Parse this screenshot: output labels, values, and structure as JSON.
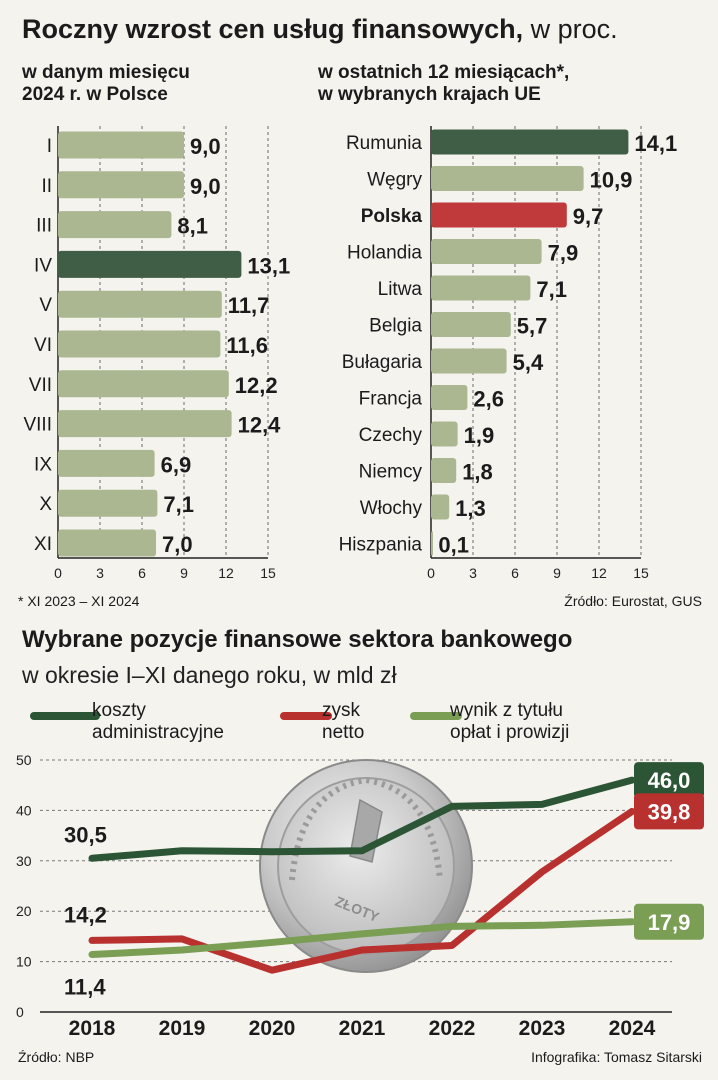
{
  "header": {
    "title": "Roczny wzrost cen usług finansowych,",
    "title_unit": "w proc.",
    "left_subtitle_line1": "w danym miesięcu",
    "left_subtitle_line2": "2024 r. w Polsce",
    "right_subtitle_line1": "w ostatnich 12 miesiącach*,",
    "right_subtitle_line2": "w wybranych krajach UE",
    "footnote": "* XI 2023 – XI 2024",
    "source": "Źródło: Eurostat, GUS"
  },
  "bottom": {
    "title": "Wybrane pozycje finansowe sektora bankowego",
    "subtitle": "w okresie I–XI danego roku, w mld zł",
    "source": "Źródło: NBP",
    "credit": "Infografika: Tomasz Sitarski",
    "coin_text": "ZŁOTY"
  },
  "legend": [
    {
      "line1": "koszty",
      "line2": "administracyjne",
      "color": "#2b5535"
    },
    {
      "line1": "zysk",
      "line2": "netto",
      "color": "#b8312f"
    },
    {
      "line1": "wynik z tytułu",
      "line2": "opłat i prowizji",
      "color": "#7a9e54"
    }
  ],
  "chart_data": [
    {
      "type": "bar",
      "orientation": "horizontal",
      "title": "w danym miesięcu 2024 r. w Polsce",
      "categories": [
        "I",
        "II",
        "III",
        "IV",
        "V",
        "VI",
        "VII",
        "VIII",
        "IX",
        "X",
        "XI"
      ],
      "values": [
        9.0,
        9.0,
        8.1,
        13.1,
        11.7,
        11.6,
        12.2,
        12.4,
        6.9,
        7.1,
        7.0
      ],
      "value_labels": [
        "9,0",
        "9,0",
        "8,1",
        "13,1",
        "11,7",
        "11,6",
        "12,2",
        "12,4",
        "6,9",
        "7,1",
        "7,0"
      ],
      "highlight": "IV",
      "bar_color": "#abb791",
      "highlight_color": "#3f5e45",
      "xlim": [
        0,
        15
      ],
      "xticks": [
        0,
        3,
        6,
        9,
        12,
        15
      ],
      "grid": true
    },
    {
      "type": "bar",
      "orientation": "horizontal",
      "title": "w ostatnich 12 miesiącach*, w wybranych krajach UE",
      "categories": [
        "Rumunia",
        "Węgry",
        "Polska",
        "Holandia",
        "Litwa",
        "Belgia",
        "Bułagaria",
        "Francja",
        "Czechy",
        "Niemcy",
        "Włochy",
        "Hiszpania"
      ],
      "values": [
        14.1,
        10.9,
        9.7,
        7.9,
        7.1,
        5.7,
        5.4,
        2.6,
        1.9,
        1.8,
        1.3,
        0.1
      ],
      "value_labels": [
        "14,1",
        "10,9",
        "9,7",
        "7,9",
        "7,1",
        "5,7",
        "5,4",
        "2,6",
        "1,9",
        "1,8",
        "1,3",
        "0,1"
      ],
      "highlight_dark": "Rumunia",
      "highlight_red": "Polska",
      "bar_color": "#abb791",
      "highlight_dark_color": "#3f5e45",
      "highlight_red_color": "#c0393b",
      "xlim": [
        0,
        15
      ],
      "xticks": [
        0,
        3,
        6,
        9,
        12,
        15
      ],
      "grid": true
    },
    {
      "type": "line",
      "x": [
        "2018",
        "2019",
        "2020",
        "2021",
        "2022",
        "2023",
        "2024"
      ],
      "ylim": [
        0,
        50
      ],
      "yticks": [
        0,
        10,
        20,
        30,
        40,
        50
      ],
      "grid": true,
      "series": [
        {
          "name": "koszty administracyjne",
          "color": "#2b5535",
          "values": [
            30.5,
            32.0,
            31.8,
            32.0,
            40.8,
            41.2,
            46.0
          ],
          "start_label": "30,5",
          "end_label": "46,0"
        },
        {
          "name": "zysk netto",
          "color": "#b8312f",
          "values": [
            14.2,
            14.5,
            8.3,
            12.3,
            13.2,
            27.8,
            39.8
          ],
          "start_label": "14,2",
          "end_label": "39,8"
        },
        {
          "name": "wynik z tytułu opłat i prowizji",
          "color": "#7a9e54",
          "values": [
            11.4,
            12.3,
            13.8,
            15.5,
            17.0,
            17.2,
            17.9
          ],
          "start_label": "11,4",
          "end_label": "17,9"
        }
      ]
    }
  ]
}
